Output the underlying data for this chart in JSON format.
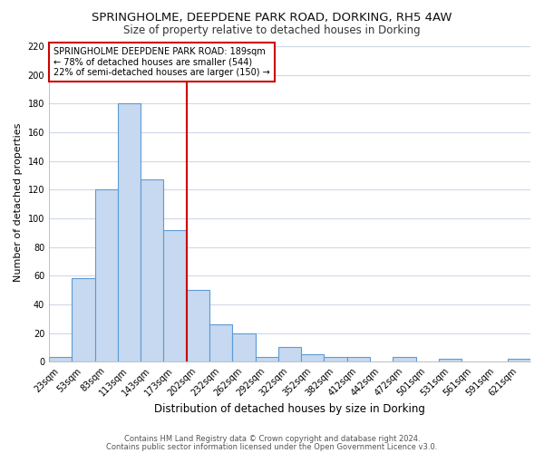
{
  "title": "SPRINGHOLME, DEEPDENE PARK ROAD, DORKING, RH5 4AW",
  "subtitle": "Size of property relative to detached houses in Dorking",
  "xlabel": "Distribution of detached houses by size in Dorking",
  "ylabel": "Number of detached properties",
  "bar_labels": [
    "23sqm",
    "53sqm",
    "83sqm",
    "113sqm",
    "143sqm",
    "173sqm",
    "202sqm",
    "232sqm",
    "262sqm",
    "292sqm",
    "322sqm",
    "352sqm",
    "382sqm",
    "412sqm",
    "442sqm",
    "472sqm",
    "501sqm",
    "531sqm",
    "561sqm",
    "591sqm",
    "621sqm"
  ],
  "bar_values": [
    3,
    58,
    120,
    180,
    127,
    92,
    50,
    26,
    20,
    3,
    10,
    5,
    3,
    3,
    0,
    3,
    0,
    2,
    0,
    0,
    2
  ],
  "bar_color": "#c6d9f0",
  "bar_edge_color": "#5b9bd5",
  "vline_x": 5.97,
  "vline_color": "#cc0000",
  "annotation_text": "SPRINGHOLME DEEPDENE PARK ROAD: 189sqm\n← 78% of detached houses are smaller (544)\n22% of semi-detached houses are larger (150) →",
  "annotation_box_color": "#ffffff",
  "annotation_box_edge": "#cc0000",
  "ylim": [
    0,
    222
  ],
  "yticks": [
    0,
    20,
    40,
    60,
    80,
    100,
    120,
    140,
    160,
    180,
    200,
    220
  ],
  "footer1": "Contains HM Land Registry data © Crown copyright and database right 2024.",
  "footer2": "Contains public sector information licensed under the Open Government Licence v3.0.",
  "bg_color": "#ffffff",
  "grid_color": "#d0d8e8",
  "title_fontsize": 9.5,
  "subtitle_fontsize": 8.5,
  "ylabel_fontsize": 8,
  "xlabel_fontsize": 8.5,
  "tick_fontsize": 7,
  "footer_fontsize": 6,
  "annot_fontsize": 7
}
